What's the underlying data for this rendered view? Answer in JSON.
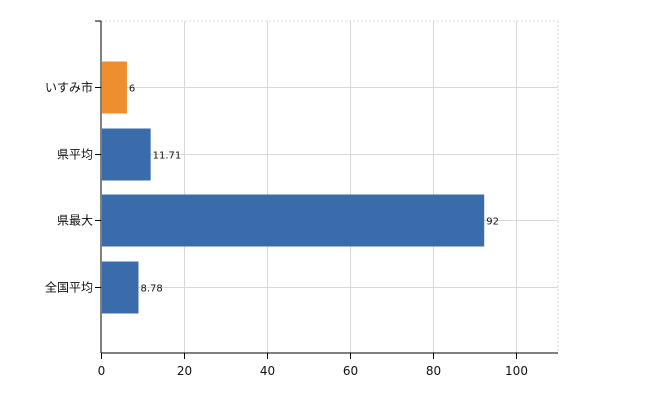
{
  "chart_data": {
    "type": "bar",
    "orientation": "horizontal",
    "categories": [
      "いすみ市",
      "県平均",
      "県最大",
      "全国平均"
    ],
    "values": [
      6,
      11.71,
      92,
      8.78
    ],
    "value_labels": [
      "6",
      "11.71",
      "92",
      "8.78"
    ],
    "bar_colors": [
      "#ef8e2e",
      "#3a6cab",
      "#3a6cab",
      "#3a6cab"
    ],
    "xlim": [
      0,
      110
    ],
    "xticks": [
      0,
      20,
      40,
      60,
      80,
      100
    ],
    "xtick_labels": [
      "0",
      "20",
      "40",
      "60",
      "80",
      "100"
    ],
    "grid": true,
    "title": "",
    "xlabel": "",
    "ylabel": ""
  },
  "colors": {
    "grid": "#d8d8d8",
    "axis": "#000000"
  }
}
